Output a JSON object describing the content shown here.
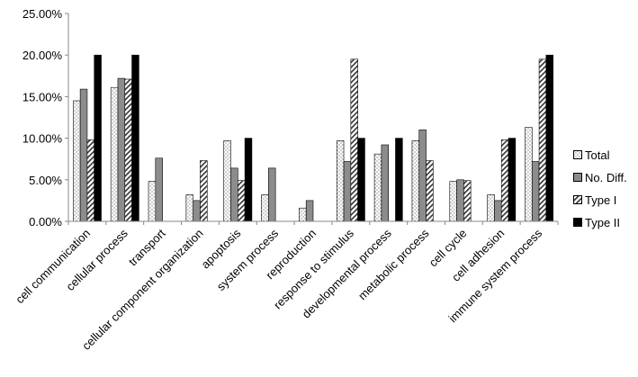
{
  "chart_data": {
    "type": "bar",
    "title": "",
    "xlabel": "",
    "ylabel": "",
    "ylim": [
      0,
      0.25
    ],
    "yticks": [
      "0.00%",
      "5.00%",
      "10.00%",
      "15.00%",
      "20.00%",
      "25.00%"
    ],
    "grid": false,
    "legend_position": "right",
    "categories": [
      "cell communication",
      "cellular process",
      "transport",
      "cellular component organization",
      "apoptosis",
      "system process",
      "reproduction",
      "response to stimulus",
      "developmental process",
      "metabolic process",
      "cell cycle",
      "cell adhesion",
      "immune system process"
    ],
    "series": [
      {
        "name": "Total",
        "pattern": "dots",
        "values": [
          0.145,
          0.161,
          0.048,
          0.032,
          0.097,
          0.032,
          0.016,
          0.097,
          0.081,
          0.097,
          0.048,
          0.032,
          0.113
        ]
      },
      {
        "name": "No. Diff.",
        "pattern": "gray",
        "values": [
          0.159,
          0.172,
          0.076,
          0.025,
          0.064,
          0.064,
          0.025,
          0.072,
          0.092,
          0.11,
          0.05,
          0.025,
          0.072
        ]
      },
      {
        "name": "Type I",
        "pattern": "diagonal",
        "values": [
          0.098,
          0.171,
          0.0,
          0.073,
          0.049,
          0.0,
          0.0,
          0.195,
          0.0,
          0.073,
          0.049,
          0.098,
          0.195
        ]
      },
      {
        "name": "Type II",
        "pattern": "black",
        "values": [
          0.2,
          0.2,
          0.0,
          0.0,
          0.1,
          0.0,
          0.0,
          0.1,
          0.1,
          0.0,
          0.0,
          0.1,
          0.2
        ]
      }
    ]
  }
}
